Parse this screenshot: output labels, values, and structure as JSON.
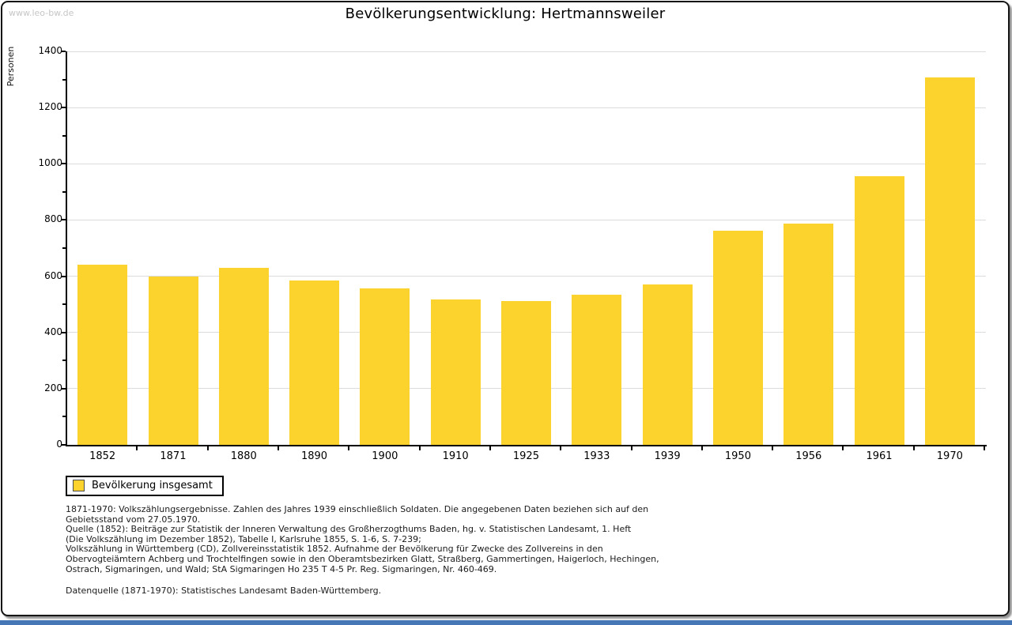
{
  "watermark": "www.leo-bw.de",
  "title": "Bevölkerungsentwicklung: Hertmannsweiler",
  "chart_data": {
    "type": "bar",
    "title": "Bevölkerungsentwicklung: Hertmannsweiler",
    "xlabel": "",
    "ylabel": "Personen",
    "categories": [
      "1852",
      "1871",
      "1880",
      "1890",
      "1900",
      "1910",
      "1925",
      "1933",
      "1939",
      "1950",
      "1956",
      "1961",
      "1970"
    ],
    "values": [
      640,
      598,
      630,
      585,
      558,
      517,
      513,
      534,
      571,
      762,
      788,
      955,
      1308
    ],
    "ylim": [
      0,
      1400
    ],
    "ytick_major_step": 200,
    "ytick_minor_step": 100,
    "grid": "horizontal major only",
    "legend_position": "bottom-left",
    "legend_entries": [
      "Bevölkerung insgesamt"
    ]
  },
  "legend": {
    "label": "Bevölkerung insgesamt"
  },
  "footnote": {
    "lines": [
      "1871-1970: Volkszählungsergebnisse. Zahlen des Jahres 1939 einschließlich Soldaten. Die angegebenen Daten beziehen sich auf den",
      "Gebietsstand vom 27.05.1970.",
      "Quelle (1852): Beiträge zur Statistik der Inneren Verwaltung des Großherzogthums Baden, hg. v. Statistischen Landesamt, 1. Heft",
      "(Die Volkszählung im Dezember 1852), Tabelle I, Karlsruhe 1855, S. 1-6, S. 7-239;",
      "Volkszählung in Württemberg (CD), Zollvereinsstatistik 1852. Aufnahme der Bevölkerung für Zwecke des Zollvereins in den",
      "Obervogteiämtern Achberg und Trochtelfingen sowie in den Oberamtsbezirken Glatt, Straßberg, Gammertingen, Haigerloch, Hechingen,",
      "Ostrach, Sigmaringen, und Wald; StA Sigmaringen Ho 235 T 4-5 Pr. Reg. Sigmaringen, Nr. 460-469."
    ],
    "datenquelle": "Datenquelle (1871-1970): Statistisches Landesamt Baden-Württemberg."
  },
  "colors": {
    "bar": "#FCD32D",
    "grid": "#DCDCDC",
    "axis": "#000000",
    "watermark": "#C6C6C6",
    "bottom_strip": "#4576B5"
  }
}
